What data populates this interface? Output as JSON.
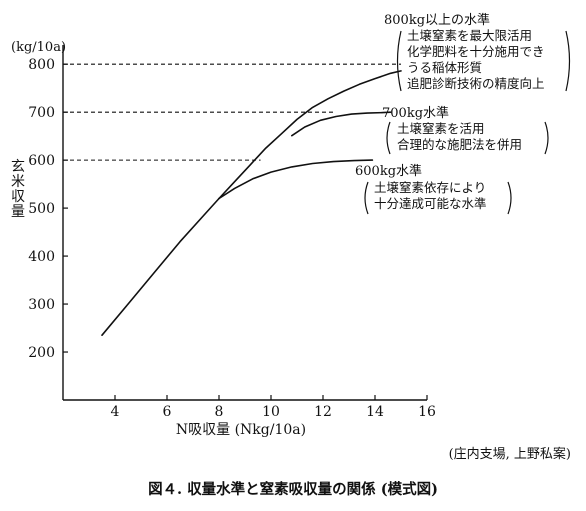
{
  "chart_data": {
    "type": "line",
    "ylabel_unit": "(kg/10a)",
    "ylabel": "玄米収量",
    "xlabel": "N吸収量 (Nkg/10a)",
    "xlim": [
      2,
      16
    ],
    "ylim": [
      100,
      840
    ],
    "x_ticks": [
      4,
      6,
      8,
      10,
      12,
      14,
      16
    ],
    "y_ticks": [
      200,
      300,
      400,
      500,
      600,
      700,
      800
    ],
    "series": [
      {
        "x": [
          3.5,
          4.5,
          5.5,
          6.5,
          7.5,
          8.0
        ],
        "y": [
          235,
          300,
          365,
          430,
          490,
          520
        ]
      },
      {
        "x": [
          8.0,
          8.6,
          9.2,
          9.8,
          10.4,
          11.0,
          11.6,
          12.2,
          12.8,
          13.4,
          14.0,
          14.6,
          15.0
        ],
        "y": [
          520,
          555,
          590,
          625,
          655,
          685,
          710,
          728,
          744,
          758,
          770,
          781,
          786
        ]
      },
      {
        "x": [
          10.8,
          11.3,
          11.9,
          12.5,
          13.1,
          13.7,
          14.3,
          14.6
        ],
        "y": [
          651,
          669,
          683,
          691,
          696,
          698,
          699,
          700
        ]
      },
      {
        "x": [
          8.0,
          8.6,
          9.3,
          10.0,
          10.8,
          11.6,
          12.4,
          13.2,
          13.9
        ],
        "y": [
          520,
          541,
          561,
          575,
          586,
          593,
          597,
          599,
          600
        ]
      }
    ],
    "reference_lines": [
      {
        "y": 800,
        "x_end": 15.0
      },
      {
        "y": 700,
        "x_end": 12.5
      },
      {
        "y": 600,
        "x_end": 9.6
      }
    ],
    "annotations": [
      {
        "title": "800kg以上の水準",
        "lines": [
          "土壌窒素を最大限活用",
          "化学肥料を十分施用でき",
          "うる稲体形質",
          "追肥診断技術の精度向上"
        ]
      },
      {
        "title": "700kg水準",
        "lines": [
          "土壌窒素を活用",
          "合理的な施肥法を併用"
        ]
      },
      {
        "title": "600kg水準",
        "lines": [
          "土壌窒素依存により",
          "十分達成可能な水準"
        ]
      }
    ],
    "grid": false,
    "legend": "none"
  },
  "credit": "(庄内支場, 上野私案)",
  "caption": "図４. 収量水準と窒素吸収量の関係 (模式図)"
}
